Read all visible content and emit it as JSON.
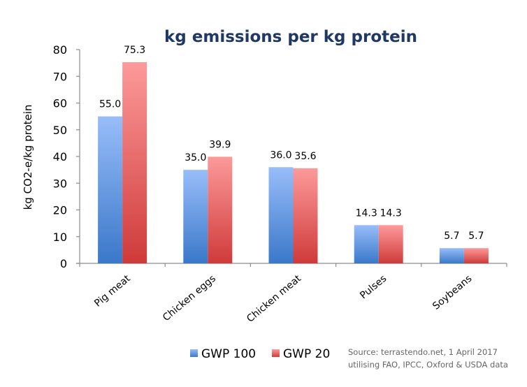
{
  "chart_data": {
    "type": "bar",
    "title": "kg emissions per kg protein",
    "xlabel": "",
    "ylabel": "kg CO2-e/kg protein",
    "ylim": [
      0,
      80
    ],
    "yticks": [
      0,
      10,
      20,
      30,
      40,
      50,
      60,
      70,
      80
    ],
    "grid": false,
    "categories": [
      "Pig meat",
      "Chicken eggs",
      "Chicken meat",
      "Pulses",
      "Soybeans"
    ],
    "series": [
      {
        "name": "GWP 100",
        "values": [
          55.0,
          35.0,
          36.0,
          14.3,
          5.7
        ],
        "labels": [
          "55.0",
          "35.0",
          "36.0",
          "14.3",
          "5.7"
        ],
        "color_top": "#98bdf9",
        "color_bottom": "#3a78c9"
      },
      {
        "name": "GWP 20",
        "values": [
          75.3,
          39.9,
          35.6,
          14.3,
          5.7
        ],
        "labels": [
          "75.3",
          "39.9",
          "35.6",
          "14.3",
          "5.7"
        ],
        "color_top": "#fd9a9a",
        "color_bottom": "#cf3a3a"
      }
    ],
    "legend_position": "bottom",
    "source_lines": [
      "Source: terrastendo.net, 1 April 2017",
      "utilising FAO, IPCC, Oxford & USDA data"
    ]
  }
}
